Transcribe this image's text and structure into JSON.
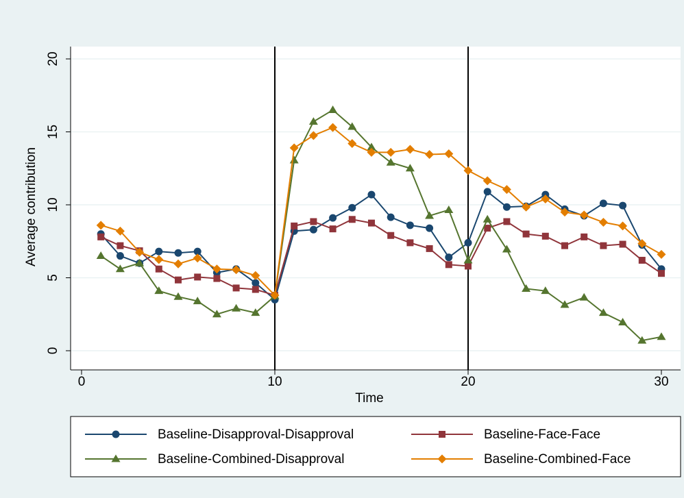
{
  "chart_data": {
    "type": "line",
    "x_label": "Time",
    "y_label": "Average contribution",
    "x": [
      1,
      2,
      3,
      4,
      5,
      6,
      7,
      8,
      9,
      10,
      11,
      12,
      13,
      14,
      15,
      16,
      17,
      18,
      19,
      20,
      21,
      22,
      23,
      24,
      25,
      26,
      27,
      28,
      29,
      30
    ],
    "series": [
      {
        "name": "Baseline-Disapproval-Disapproval",
        "color": "#1a476f",
        "marker": "circle",
        "values": [
          8.0,
          6.5,
          6.0,
          6.8,
          6.7,
          6.8,
          5.35,
          5.6,
          4.65,
          3.5,
          8.2,
          8.3,
          9.1,
          9.8,
          10.7,
          9.15,
          8.6,
          8.4,
          6.4,
          7.4,
          10.9,
          9.85,
          9.9,
          10.7,
          9.7,
          9.25,
          10.1,
          9.95,
          7.25,
          5.6
        ]
      },
      {
        "name": "Baseline-Face-Face",
        "color": "#90353b",
        "marker": "square",
        "values": [
          7.8,
          7.2,
          6.85,
          5.6,
          4.85,
          5.05,
          4.95,
          4.3,
          4.2,
          3.8,
          8.55,
          8.85,
          8.35,
          9.0,
          8.75,
          7.9,
          7.4,
          7.0,
          5.9,
          5.8,
          8.4,
          8.85,
          8.0,
          7.85,
          7.2,
          7.8,
          7.2,
          7.3,
          6.2,
          5.3
        ]
      },
      {
        "name": "Baseline-Combined-Disapproval",
        "color": "#55752f",
        "marker": "triangle",
        "values": [
          6.5,
          5.6,
          6.0,
          4.1,
          3.7,
          3.4,
          2.5,
          2.9,
          2.6,
          3.75,
          13.05,
          15.7,
          16.5,
          15.35,
          13.95,
          12.9,
          12.5,
          9.25,
          9.65,
          6.2,
          9.0,
          6.95,
          4.25,
          4.1,
          3.15,
          3.65,
          2.6,
          1.95,
          0.7,
          0.95
        ]
      },
      {
        "name": "Baseline-Combined-Face",
        "color": "#e37e00",
        "marker": "diamond",
        "values": [
          8.6,
          8.2,
          6.75,
          6.25,
          5.95,
          6.35,
          5.6,
          5.55,
          5.15,
          3.8,
          13.9,
          14.75,
          15.3,
          14.2,
          13.6,
          13.6,
          13.8,
          13.45,
          13.5,
          12.35,
          11.65,
          11.05,
          9.85,
          10.4,
          9.5,
          9.3,
          8.8,
          8.55,
          7.35,
          6.6
        ]
      }
    ],
    "xlim": [
      0,
      30
    ],
    "xticks": [
      0,
      10,
      20,
      30
    ],
    "ylim": [
      0,
      20
    ],
    "yticks": [
      0,
      5,
      10,
      15,
      20
    ],
    "xlines": [
      10,
      20
    ],
    "grid": true
  }
}
